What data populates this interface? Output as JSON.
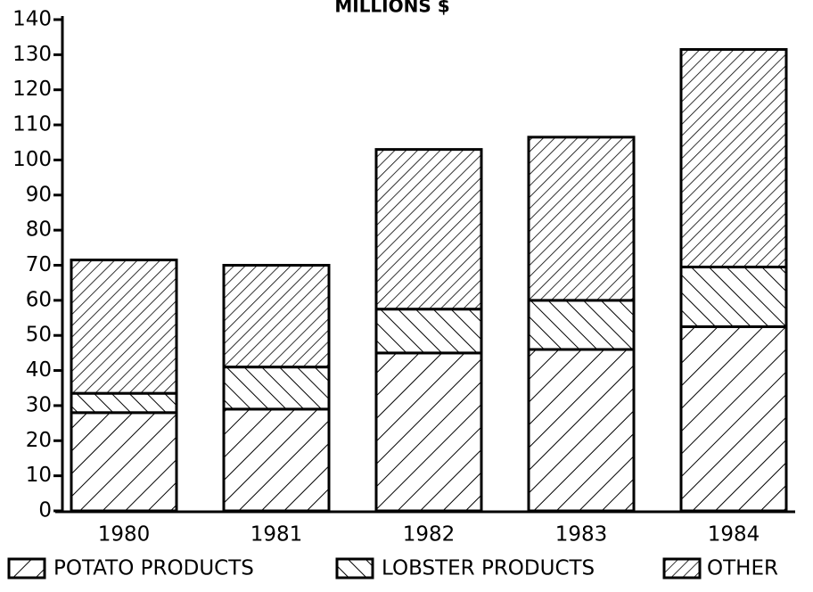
{
  "chart_data": {
    "type": "bar",
    "stacked": true,
    "title": "MILLIONS $",
    "categories": [
      "1980",
      "1981",
      "1982",
      "1983",
      "1984"
    ],
    "series": [
      {
        "name": "POTATO PRODUCTS",
        "color": "#000000",
        "values": [
          28,
          29,
          45,
          46,
          52.5
        ]
      },
      {
        "name": "LOBSTER PRODUCTS",
        "color": "#000000",
        "values": [
          5.5,
          12,
          12.5,
          14,
          17
        ]
      },
      {
        "name": "OTHER",
        "color": "#000000",
        "values": [
          38,
          29,
          45.5,
          46.5,
          62
        ]
      }
    ],
    "ylim": [
      0,
      140
    ],
    "yticks": [
      0,
      10,
      20,
      30,
      40,
      50,
      60,
      70,
      80,
      90,
      100,
      110,
      120,
      130,
      140
    ],
    "grid": false,
    "legend": "bottom"
  }
}
